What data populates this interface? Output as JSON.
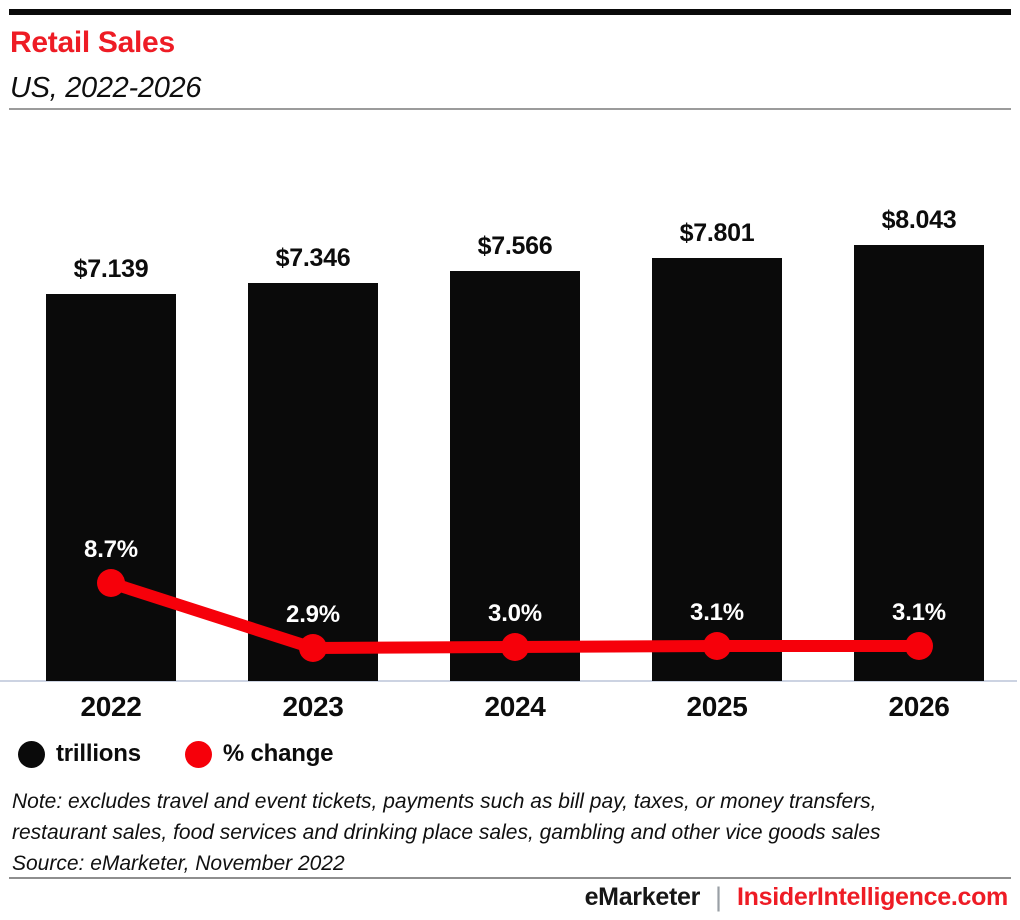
{
  "header": {
    "title": "Retail Sales",
    "subtitle": "US, 2022-2026"
  },
  "chart_data": {
    "type": "bar",
    "title": "Retail Sales",
    "subtitle": "US, 2022-2026",
    "categories": [
      "2022",
      "2023",
      "2024",
      "2025",
      "2026"
    ],
    "series": [
      {
        "name": "trillions",
        "type": "bar",
        "unit": "USD trillions",
        "values": [
          7.139,
          7.346,
          7.566,
          7.801,
          8.043
        ],
        "labels": [
          "$7.139",
          "$7.346",
          "$7.566",
          "$7.801",
          "$8.043"
        ]
      },
      {
        "name": "% change",
        "type": "line",
        "unit": "percent",
        "values": [
          8.7,
          2.9,
          3.0,
          3.1,
          3.1
        ],
        "labels": [
          "8.7%",
          "2.9%",
          "3.0%",
          "3.1%",
          "3.1%"
        ]
      }
    ],
    "legend": [
      {
        "label": "trillions",
        "color": "#0a0a0a"
      },
      {
        "label": "% change",
        "color": "#f6000a"
      }
    ],
    "legend_position": "bottom-left",
    "grid": false,
    "y_axis": {
      "visible": false,
      "origin": 0
    }
  },
  "note_lines": [
    "Note: excludes travel and event tickets, payments such as bill pay, taxes, or money transfers,",
    "restaurant sales, food services and drinking place sales, gambling and other vice goods sales"
  ],
  "source": "Source: eMarketer, November 2022",
  "footer": {
    "brand": "eMarketer",
    "separator": "|",
    "site": "InsiderIntelligence.com"
  },
  "colors": {
    "brand_red": "#ee1c25",
    "line_red": "#f6000a",
    "bar_black": "#0a0a0a",
    "axis_line": "#ccd3e2",
    "rule_gray": "#9b9b9b",
    "footer_rule": "#8e8e8e",
    "pct_label_text": "#ffffff"
  }
}
